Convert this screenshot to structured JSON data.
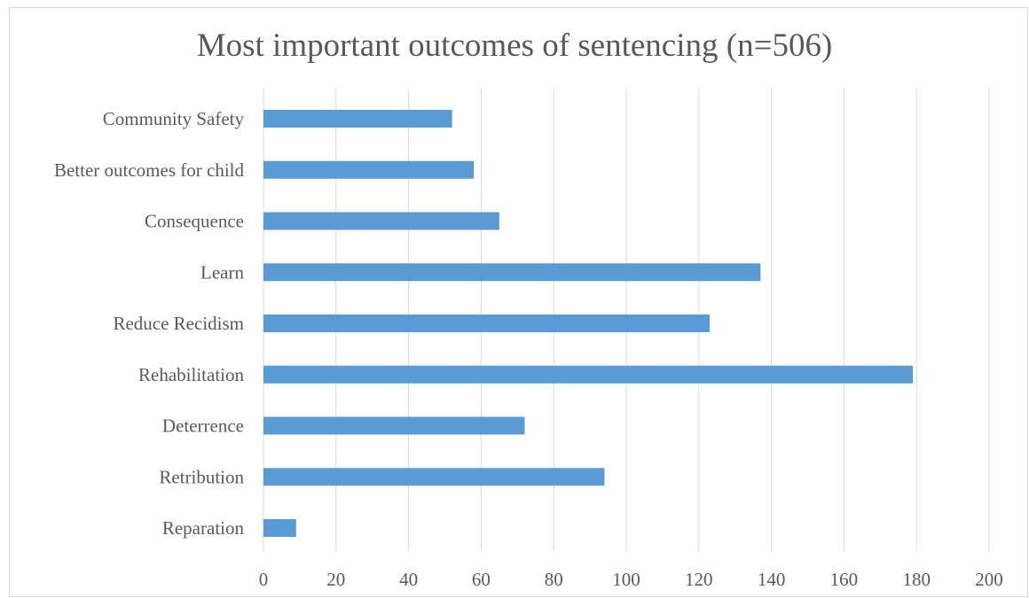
{
  "chart_data": {
    "type": "bar",
    "orientation": "horizontal",
    "title": "Most important outcomes of sentencing (n=506)",
    "categories": [
      "Community Safety",
      "Better outcomes for child",
      "Consequence",
      "Learn",
      "Reduce Recidism",
      "Rehabilitation",
      "Deterrence",
      "Retribution",
      "Reparation"
    ],
    "values": [
      52,
      58,
      65,
      137,
      123,
      179,
      72,
      94,
      9
    ],
    "xlim": [
      0,
      200
    ],
    "x_ticks": [
      "0",
      "20",
      "40",
      "60",
      "80",
      "100",
      "120",
      "140",
      "160",
      "180",
      "200"
    ],
    "grid": "vertical",
    "legend": "none",
    "bar_color": "#5b9bd5",
    "grid_color": "#d9d9d9",
    "text_color": "#595959"
  }
}
